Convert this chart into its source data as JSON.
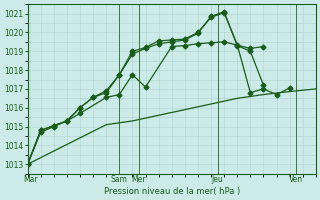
{
  "bg_color": "#cceae7",
  "grid_color": "#b0d4d0",
  "line_color": "#1a5c1a",
  "xlabel": "Pression niveau de la mer( hPa )",
  "ylim": [
    1012.5,
    1021.5
  ],
  "yticks": [
    1013,
    1014,
    1015,
    1016,
    1017,
    1018,
    1019,
    1020,
    1021
  ],
  "xlim": [
    0,
    22
  ],
  "day_labels": [
    "Mar",
    "Sam",
    "Mer",
    "Jeu",
    "Ven"
  ],
  "day_positions": [
    0.2,
    7.0,
    8.5,
    14.5,
    20.5
  ],
  "vline_positions": [
    7.0,
    8.5,
    14.5,
    20.5
  ],
  "series1_x": [
    0,
    1,
    2,
    3,
    4,
    5,
    6,
    7,
    8,
    9,
    10,
    11,
    12,
    13,
    14,
    15,
    16,
    17,
    18,
    19,
    20,
    21,
    22
  ],
  "series1_y": [
    1013.0,
    1013.35,
    1013.7,
    1014.05,
    1014.4,
    1014.75,
    1015.1,
    1015.2,
    1015.3,
    1015.45,
    1015.6,
    1015.75,
    1015.9,
    1016.05,
    1016.2,
    1016.35,
    1016.5,
    1016.6,
    1016.7,
    1016.78,
    1016.86,
    1016.93,
    1017.0
  ],
  "series2_x": [
    0,
    1,
    2,
    3,
    4,
    6,
    7,
    8,
    9,
    11,
    12,
    13,
    14,
    15,
    17,
    18
  ],
  "series2_y": [
    1013.0,
    1014.7,
    1015.0,
    1015.3,
    1015.7,
    1016.55,
    1016.7,
    1017.75,
    1017.1,
    1019.25,
    1019.3,
    1019.4,
    1019.45,
    1019.5,
    1019.15,
    1019.25
  ],
  "series3_x": [
    0,
    1,
    2,
    3,
    4,
    5,
    6,
    7,
    8,
    9,
    10,
    11,
    12,
    13,
    14,
    15,
    16,
    17,
    18
  ],
  "series3_y": [
    1013.0,
    1014.8,
    1015.05,
    1015.3,
    1016.0,
    1016.55,
    1016.8,
    1017.75,
    1018.85,
    1019.15,
    1019.4,
    1019.5,
    1019.6,
    1019.95,
    1020.85,
    1021.1,
    1019.3,
    1019.0,
    1017.2
  ],
  "series4_x": [
    0,
    1,
    2,
    3,
    4,
    5,
    6,
    7,
    8,
    9,
    10,
    11,
    12,
    13,
    14,
    15,
    16,
    17,
    18,
    19,
    20
  ],
  "series4_y": [
    1013.0,
    1014.8,
    1015.05,
    1015.3,
    1016.0,
    1016.55,
    1016.9,
    1017.75,
    1019.0,
    1019.2,
    1019.55,
    1019.6,
    1019.65,
    1020.0,
    1020.8,
    1021.05,
    1019.35,
    1016.8,
    1017.0,
    1016.7,
    1017.05
  ]
}
